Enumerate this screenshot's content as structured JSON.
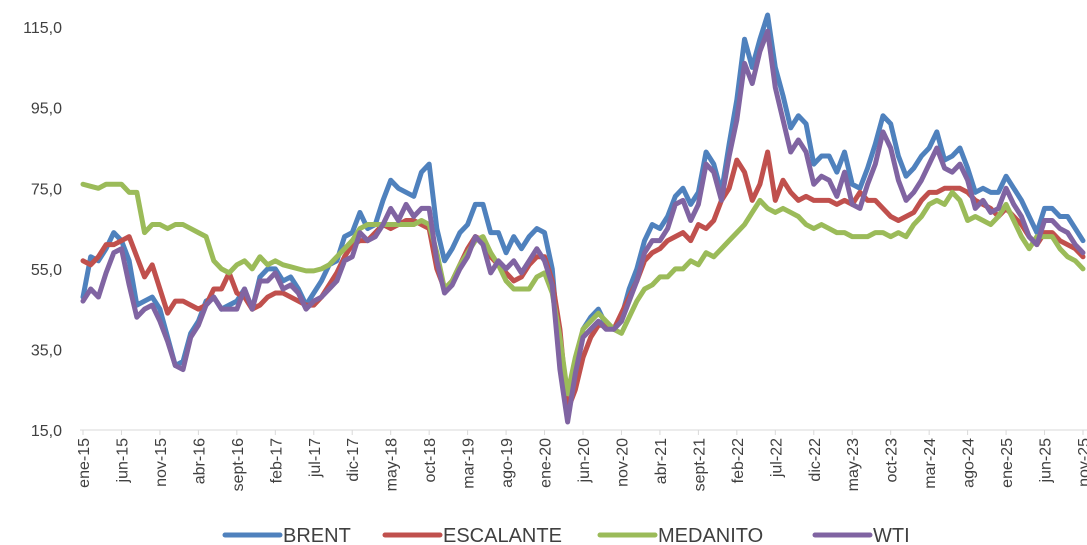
{
  "chart_data": {
    "type": "line",
    "categories": [
      "ene-15",
      null,
      null,
      null,
      null,
      "jun-15",
      null,
      null,
      null,
      null,
      "nov-15",
      null,
      null,
      null,
      null,
      "abr-16",
      null,
      null,
      null,
      null,
      "sept-16",
      null,
      null,
      null,
      null,
      "feb-17",
      null,
      null,
      null,
      null,
      "jul-17",
      null,
      null,
      null,
      null,
      "dic-17",
      null,
      null,
      null,
      null,
      "may-18",
      null,
      null,
      null,
      null,
      "oct-18",
      null,
      null,
      null,
      null,
      "mar-19",
      null,
      null,
      null,
      null,
      "ago-19",
      null,
      null,
      null,
      null,
      "ene-20",
      null,
      null,
      null,
      null,
      "jun-20",
      null,
      null,
      null,
      null,
      "nov-20",
      null,
      null,
      null,
      null,
      "abr-21",
      null,
      null,
      null,
      null,
      "sept-21",
      null,
      null,
      null,
      null,
      "feb-22",
      null,
      null,
      null,
      null,
      "jul-22",
      null,
      null,
      null,
      null,
      "dic-22",
      null,
      null,
      null,
      null,
      "may-23",
      null,
      null,
      null,
      null,
      "oct-23",
      null,
      null,
      null,
      null,
      "mar-24",
      null,
      null,
      null,
      null,
      "ago-24",
      null,
      null,
      null,
      null,
      "ene-25",
      null,
      null,
      null,
      null,
      "jun-25",
      null,
      null,
      null,
      null,
      "nov-25"
    ],
    "series": [
      {
        "name": "BRENT",
        "color": "#4f81bd",
        "values": [
          48,
          58,
          57,
          60,
          64,
          62,
          57,
          46,
          47,
          48,
          45,
          38,
          31,
          32,
          39,
          42,
          47,
          48,
          45,
          46,
          47,
          50,
          45,
          53,
          55,
          55,
          52,
          53,
          50,
          46,
          49,
          52,
          56,
          57,
          63,
          64,
          69,
          65,
          66,
          72,
          77,
          75,
          74,
          73,
          79,
          81,
          65,
          57,
          60,
          64,
          66,
          71,
          71,
          64,
          64,
          59,
          63,
          60,
          63,
          65,
          64,
          55,
          33,
          18,
          29,
          40,
          43,
          45,
          41,
          40,
          43,
          50,
          55,
          62,
          66,
          65,
          68,
          73,
          75,
          71,
          74,
          84,
          81,
          74,
          86,
          97,
          112,
          105,
          112,
          118,
          105,
          98,
          90,
          93,
          91,
          81,
          83,
          83,
          79,
          84,
          76,
          75,
          80,
          86,
          93,
          91,
          83,
          78,
          80,
          83,
          85,
          89,
          82,
          83,
          85,
          80,
          74,
          75,
          74,
          74,
          78,
          75,
          72,
          68,
          64,
          70,
          70,
          68,
          68,
          65,
          62
        ]
      },
      {
        "name": "ESCALANTE",
        "color": "#c0504d",
        "values": [
          57,
          56,
          58,
          61,
          61,
          62,
          63,
          58,
          53,
          56,
          50,
          44,
          47,
          47,
          46,
          45,
          46,
          50,
          50,
          54,
          49,
          48,
          45,
          46,
          48,
          49,
          49,
          48,
          47,
          46,
          46,
          48,
          51,
          54,
          58,
          61,
          62,
          62,
          64,
          66,
          65,
          66,
          67,
          67,
          66,
          65,
          55,
          50,
          52,
          56,
          60,
          63,
          62,
          58,
          56,
          54,
          52,
          53,
          56,
          58,
          58,
          52,
          40,
          20,
          25,
          33,
          38,
          41,
          41,
          40,
          44,
          48,
          52,
          57,
          59,
          60,
          62,
          63,
          64,
          62,
          66,
          65,
          67,
          72,
          75,
          82,
          79,
          72,
          76,
          84,
          72,
          77,
          74,
          72,
          73,
          72,
          72,
          72,
          71,
          72,
          71,
          74,
          72,
          72,
          70,
          68,
          67,
          68,
          69,
          72,
          74,
          74,
          75,
          75,
          75,
          74,
          72,
          71,
          70,
          68,
          70,
          68,
          66,
          63,
          61,
          64,
          64,
          62,
          61,
          60,
          58
        ]
      },
      {
        "name": "MEDANITO",
        "color": "#9bbb59",
        "values": [
          76,
          75.5,
          75,
          76,
          76,
          76,
          74,
          74,
          64,
          66,
          66,
          65,
          66,
          66,
          65,
          64,
          63,
          57,
          55,
          54,
          56,
          57,
          55,
          58,
          56,
          57,
          56,
          55.5,
          55,
          54.5,
          54.5,
          55,
          56,
          58,
          60,
          62,
          65,
          66,
          66,
          66,
          66,
          66,
          66,
          66,
          67,
          66,
          59,
          50,
          52,
          56,
          59,
          62,
          63,
          59,
          56,
          52,
          50,
          50,
          50,
          53,
          54,
          49,
          38,
          24,
          33,
          40,
          42,
          44,
          42,
          40,
          39,
          43,
          47,
          50,
          51,
          53,
          53,
          55,
          55,
          57,
          56,
          59,
          58,
          60,
          62,
          64,
          66,
          69,
          72,
          70,
          69,
          70,
          69,
          68,
          66,
          65,
          66,
          65,
          64,
          64,
          63,
          63,
          63,
          64,
          64,
          63,
          64,
          63,
          66,
          68,
          71,
          72,
          71,
          74,
          72,
          67,
          68,
          67,
          66,
          68,
          71,
          67,
          63,
          60,
          63,
          63,
          63,
          60,
          58,
          57,
          55
        ]
      },
      {
        "name": "WTI",
        "color": "#8064a2",
        "values": [
          47,
          50,
          48,
          54,
          59,
          60,
          51,
          43,
          45,
          46,
          42,
          37,
          31,
          30,
          38,
          41,
          46,
          48,
          45,
          45,
          45,
          50,
          45,
          52,
          52,
          54,
          50,
          51,
          49,
          45,
          47,
          48,
          50,
          52,
          57,
          58,
          64,
          62,
          63,
          66,
          70,
          67,
          71,
          68,
          70,
          70,
          57,
          49,
          51,
          55,
          58,
          63,
          61,
          54,
          57,
          55,
          57,
          54,
          57,
          60,
          57,
          51,
          30,
          17,
          29,
          38,
          40,
          42,
          40,
          40,
          42,
          47,
          52,
          59,
          62,
          62,
          65,
          71,
          72,
          67,
          71,
          81,
          79,
          72,
          83,
          92,
          106,
          101,
          109,
          114,
          100,
          92,
          84,
          87,
          84,
          76,
          78,
          77,
          73,
          79,
          71,
          70,
          76,
          81,
          89,
          85,
          77,
          72,
          74,
          77,
          81,
          85,
          80,
          79,
          81,
          77,
          70,
          72,
          69,
          70,
          75,
          71,
          68,
          63,
          61,
          67,
          67,
          65,
          64,
          61,
          59
        ]
      }
    ],
    "ylim": [
      15,
      120
    ],
    "yticks": [
      {
        "value": 15,
        "label": "15,0"
      },
      {
        "value": 35,
        "label": "35,0"
      },
      {
        "value": 55,
        "label": "55,0"
      },
      {
        "value": 75,
        "label": "75,0"
      },
      {
        "value": 95,
        "label": "95,0"
      },
      {
        "value": 115,
        "label": "115,0"
      }
    ],
    "grid": false,
    "legend": "bottom"
  }
}
